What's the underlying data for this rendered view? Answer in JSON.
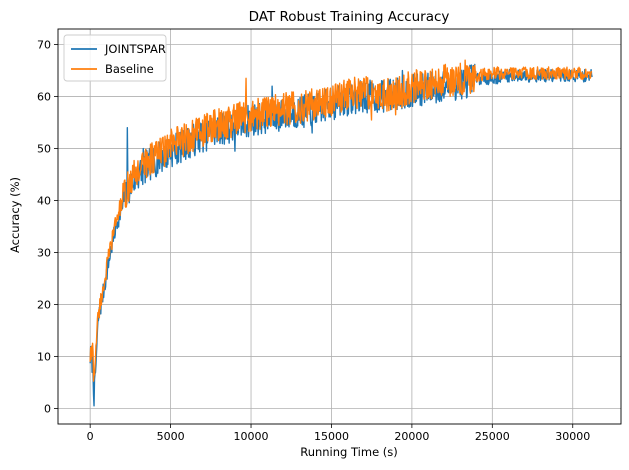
{
  "chart_data": {
    "type": "line",
    "title": "DAT Robust Training Accuracy",
    "xlabel": "Running Time (s)",
    "ylabel": "Accuracy (%)",
    "xlim": [
      -2000,
      33000
    ],
    "ylim": [
      -3,
      73
    ],
    "xticks": [
      0,
      5000,
      10000,
      15000,
      20000,
      25000,
      30000
    ],
    "yticks": [
      0,
      10,
      20,
      30,
      40,
      50,
      60,
      70
    ],
    "grid": true,
    "legend": "top-left",
    "series": [
      {
        "name": "JOINTSPAR",
        "color": "#1f77b4",
        "x": [
          0,
          150,
          250,
          350,
          500,
          800,
          1200,
          1600,
          2000,
          2500,
          3000,
          3500,
          4000,
          5000,
          6000,
          7000,
          8000,
          9000,
          10000,
          11000,
          12000,
          13000,
          14000,
          15000,
          16000,
          17000,
          18000,
          19000,
          20000,
          21000,
          22000,
          23000,
          24000,
          25000,
          26000,
          27000,
          28000,
          29000,
          30000,
          31200
        ],
        "y": [
          10,
          9,
          2,
          8,
          17,
          22,
          29,
          35,
          39,
          43,
          45,
          46.5,
          47.5,
          49.5,
          51,
          52.5,
          53.5,
          54.5,
          55.5,
          56,
          56.5,
          57,
          57.5,
          58.5,
          59.5,
          60,
          60,
          60.5,
          61,
          61.5,
          62,
          62.5,
          63.5,
          63.5,
          64,
          64,
          64,
          64,
          64,
          64
        ],
        "spikes": [
          [
            250,
            0.5
          ],
          [
            2300,
            54
          ],
          [
            3300,
            50
          ],
          [
            8000,
            56
          ],
          [
            9000,
            49.5
          ],
          [
            11300,
            62
          ],
          [
            13800,
            53
          ],
          [
            17800,
            57.5
          ],
          [
            19400,
            65
          ]
        ]
      },
      {
        "name": "Baseline",
        "color": "#ff7f0e",
        "x": [
          0,
          150,
          250,
          350,
          500,
          800,
          1200,
          1600,
          2000,
          2500,
          3000,
          3500,
          4000,
          5000,
          6000,
          7000,
          8000,
          9000,
          10000,
          11000,
          12000,
          13000,
          14000,
          15000,
          16000,
          17000,
          18000,
          19000,
          20000,
          21000,
          22000,
          23000,
          24000,
          25000,
          26000,
          27000,
          28000,
          29000,
          30000,
          31200
        ],
        "y": [
          10,
          11,
          5,
          12,
          18,
          23,
          30,
          36,
          40,
          43.5,
          46,
          47.5,
          48.5,
          50.5,
          52,
          53.5,
          54.5,
          55.5,
          56.5,
          57,
          57.5,
          58,
          58.5,
          59.5,
          60.5,
          61,
          60,
          60.5,
          62,
          62.5,
          63,
          63.5,
          64,
          64.5,
          64.5,
          64.5,
          64.5,
          64.5,
          64.5,
          64.5
        ],
        "spikes": [
          [
            9700,
            63.5
          ],
          [
            17500,
            55.5
          ],
          [
            19000,
            56.5
          ],
          [
            23300,
            67
          ]
        ]
      }
    ]
  }
}
